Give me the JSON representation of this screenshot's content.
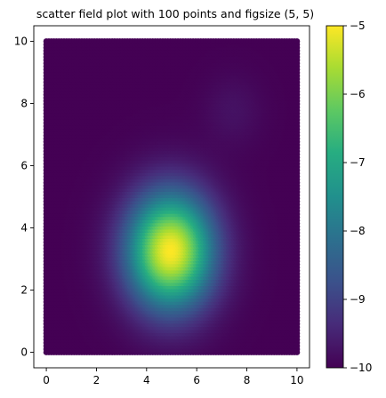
{
  "chart_data": {
    "type": "heatmap",
    "title": "scatter field plot with 100 points and figsize (5, 5)",
    "xlabel": "",
    "ylabel": "",
    "xlim": [
      -0.5,
      10.5
    ],
    "ylim": [
      -0.5,
      10.5
    ],
    "x_ticks": [
      0,
      2,
      4,
      6,
      8,
      10
    ],
    "y_ticks": [
      0,
      2,
      4,
      6,
      8,
      10
    ],
    "grid_extent": {
      "x": [
        0,
        10
      ],
      "y": [
        0,
        10
      ]
    },
    "colormap": "viridis",
    "colorbar": {
      "range": [
        -10,
        -5
      ],
      "ticks": [
        -10,
        -9,
        -8,
        -7,
        -6,
        -5
      ],
      "tick_labels": [
        "−10",
        "−9",
        "−8",
        "−7",
        "−6",
        "−5"
      ],
      "placement": "right"
    },
    "field_components": [
      {
        "center": [
          5.0,
          3.3
        ],
        "peak": -5,
        "spread_x": 1.2,
        "spread_y": 1.3
      },
      {
        "center": [
          7.5,
          7.8
        ],
        "peak": -9.75,
        "spread_x": 0.8,
        "spread_y": 0.8
      }
    ],
    "baseline": -10,
    "grid": false
  }
}
